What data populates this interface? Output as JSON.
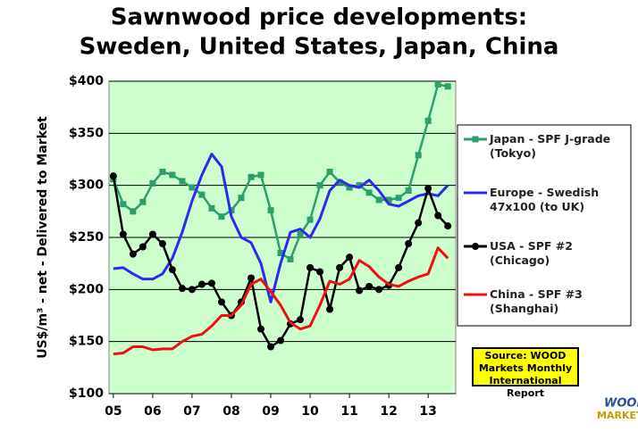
{
  "chart_data": {
    "type": "line",
    "title": [
      "Sawnwood price developments:",
      "Sweden, United States, Japan, China"
    ],
    "ylabel": "US$/m³ - net - Delivered to Market",
    "x": [
      2005,
      2005.25,
      2005.5,
      2005.75,
      2006,
      2006.25,
      2006.5,
      2006.75,
      2007,
      2007.25,
      2007.5,
      2007.75,
      2008,
      2008.25,
      2008.5,
      2008.75,
      2009,
      2009.25,
      2009.5,
      2009.75,
      2010,
      2010.25,
      2010.5,
      2010.75,
      2011,
      2011.25,
      2011.5,
      2011.75,
      2012,
      2012.25,
      2012.5,
      2012.75,
      2013,
      2013.25,
      2013.5
    ],
    "series": [
      {
        "name": "Japan - SPF J-grade (Tokyo)",
        "color": "#2e9e6b",
        "marker": "square",
        "values": [
          306,
          282,
          275,
          284,
          302,
          313,
          310,
          304,
          298,
          291,
          278,
          270,
          276,
          288,
          308,
          310,
          276,
          235,
          229,
          253,
          267,
          300,
          313,
          303,
          298,
          300,
          293,
          286,
          286,
          288,
          295,
          329,
          362,
          397,
          395
        ]
      },
      {
        "name": "Europe - Swedish 47x100 (to UK)",
        "color": "#2b2bf0",
        "marker": "none",
        "values": [
          220,
          221,
          215,
          210,
          210,
          215,
          230,
          255,
          285,
          310,
          330,
          318,
          270,
          250,
          245,
          225,
          188,
          225,
          255,
          258,
          250,
          268,
          295,
          305,
          300,
          298,
          305,
          295,
          282,
          280,
          285,
          290,
          292,
          290,
          300
        ]
      },
      {
        "name": "USA - SPF #2 (Chicago)",
        "color": "#000000",
        "marker": "circle",
        "values": [
          309,
          253,
          234,
          241,
          253,
          244,
          219,
          201,
          200,
          205,
          206,
          188,
          175,
          188,
          211,
          162,
          145,
          151,
          167,
          171,
          221,
          217,
          181,
          221,
          231,
          199,
          203,
          200,
          204,
          221,
          244,
          264,
          297,
          271,
          261
        ]
      },
      {
        "name": "China - SPF #3 (Shanghai)",
        "color": "#ee1111",
        "marker": "none",
        "values": [
          138,
          139,
          145,
          145,
          142,
          143,
          143,
          150,
          155,
          157,
          165,
          175,
          175,
          185,
          205,
          210,
          198,
          185,
          168,
          162,
          165,
          185,
          208,
          205,
          210,
          228,
          222,
          212,
          205,
          203,
          208,
          212,
          215,
          240,
          230
        ]
      }
    ],
    "xlim": [
      2004.89,
      2013.7
    ],
    "xticks": [
      {
        "value": 2005,
        "label": "05"
      },
      {
        "value": 2006,
        "label": "06"
      },
      {
        "value": 2007,
        "label": "07"
      },
      {
        "value": 2008,
        "label": "08"
      },
      {
        "value": 2009,
        "label": "09"
      },
      {
        "value": 2010,
        "label": "10"
      },
      {
        "value": 2011,
        "label": "11"
      },
      {
        "value": 2012,
        "label": "12"
      },
      {
        "value": 2013,
        "label": "13"
      }
    ],
    "ylim": [
      100,
      400
    ],
    "yticks": [
      {
        "value": 100,
        "label": "$100"
      },
      {
        "value": 150,
        "label": "$150"
      },
      {
        "value": 200,
        "label": "$200"
      },
      {
        "value": 250,
        "label": "$250"
      },
      {
        "value": 300,
        "label": "$300"
      },
      {
        "value": 350,
        "label": "$350"
      },
      {
        "value": 400,
        "label": "$400"
      }
    ],
    "grid": true,
    "legend": "right",
    "source": "Source: WOOD Markets Monthly International Report",
    "logo": [
      "WOOD",
      "MARKETS"
    ]
  }
}
